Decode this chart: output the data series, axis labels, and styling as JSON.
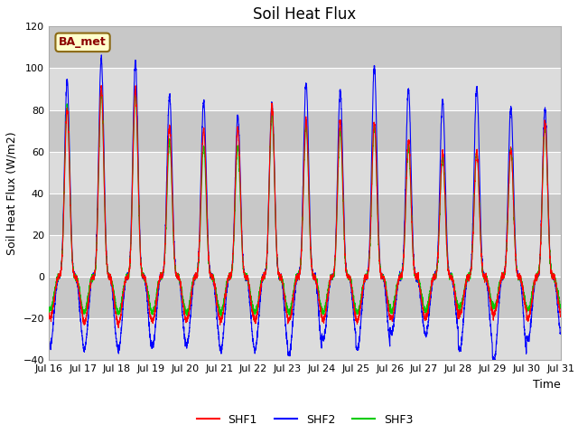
{
  "title": "Soil Heat Flux",
  "ylabel": "Soil Heat Flux (W/m2)",
  "xlabel": "Time",
  "ylim": [
    -40,
    120
  ],
  "xlim": [
    0,
    360
  ],
  "tick_labels": [
    "Jul 16",
    "Jul 17",
    "Jul 18",
    "Jul 19",
    "Jul 20",
    "Jul 21",
    "Jul 22",
    "Jul 23",
    "Jul 24",
    "Jul 25",
    "Jul 26",
    "Jul 27",
    "Jul 28",
    "Jul 29",
    "Jul 30",
    "Jul 31"
  ],
  "yticks": [
    -40,
    -20,
    0,
    20,
    40,
    60,
    80,
    100,
    120
  ],
  "annotation": "BA_met",
  "annotation_color": "#8B0000",
  "annotation_bg": "#FFFFCC",
  "annotation_edge": "#8B6914",
  "line_colors": {
    "SHF1": "#FF0000",
    "SHF2": "#0000FF",
    "SHF3": "#00CC00"
  },
  "legend_labels": [
    "SHF1",
    "SHF2",
    "SHF3"
  ],
  "bg_color": "#F0F0F0",
  "plot_bg_light": "#DCDCDC",
  "plot_bg_dark": "#C8C8C8",
  "grid_color": "#FFFFFF",
  "title_fontsize": 12,
  "axis_fontsize": 9,
  "tick_fontsize": 8,
  "n_days": 15,
  "points_per_day": 288,
  "day_peaks_shf2": [
    94,
    105,
    103,
    87,
    84,
    77,
    83,
    93,
    89,
    101,
    90,
    85,
    91,
    81,
    80
  ],
  "day_peaks_shf1": [
    80,
    91,
    90,
    72,
    71,
    71,
    82,
    75,
    75,
    74,
    65,
    60,
    60,
    61,
    74
  ],
  "day_peaks_shf3": [
    82,
    88,
    88,
    65,
    62,
    62,
    78,
    72,
    70,
    72,
    62,
    58,
    60,
    61,
    72
  ],
  "night_depth_shf2": [
    33,
    35,
    35,
    33,
    33,
    35,
    35,
    37,
    30,
    35,
    27,
    28,
    35,
    40,
    30
  ],
  "night_depth_shf1": [
    20,
    22,
    22,
    21,
    21,
    21,
    21,
    21,
    21,
    21,
    20,
    20,
    18,
    18,
    20
  ],
  "night_depth_shf3": [
    16,
    17,
    17,
    17,
    17,
    17,
    17,
    17,
    17,
    17,
    16,
    16,
    15,
    15,
    16
  ],
  "peak_sharpness": 6,
  "trough_sharpness": 2
}
